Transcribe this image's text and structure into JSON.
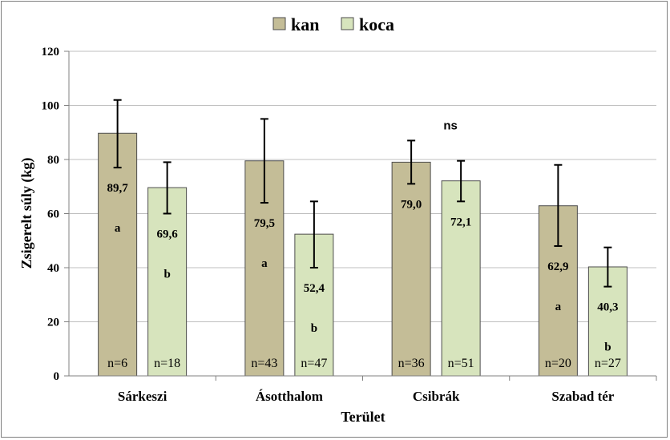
{
  "chart_data": {
    "type": "bar",
    "title": "",
    "xlabel": "Terület",
    "ylabel": "Zsigerelt súly (kg)",
    "ylim": [
      0,
      120
    ],
    "yticks": [
      0,
      20,
      40,
      60,
      80,
      100,
      120
    ],
    "categories": [
      "Sárkeszi",
      "Ásotthalom",
      "Csibrák",
      "Szabad tér"
    ],
    "legend_position": "top-center",
    "grid": true,
    "colors": {
      "kan": "#c4bd97",
      "koca": "#d7e4bd",
      "border": "#4d4d4d"
    },
    "series": [
      {
        "name": "kan",
        "values": [
          89.7,
          79.5,
          79.0,
          62.9
        ],
        "value_labels": [
          "89,7",
          "79,5",
          "79,0",
          "62,9"
        ],
        "error_low": [
          77,
          64,
          71,
          48
        ],
        "error_high": [
          102,
          95,
          87,
          78
        ],
        "letters": [
          "a",
          "a",
          "",
          "a"
        ],
        "n": [
          "n=6",
          "n=43",
          "n=36",
          "n=20"
        ]
      },
      {
        "name": "koca",
        "values": [
          69.6,
          52.4,
          72.1,
          40.3
        ],
        "value_labels": [
          "69,6",
          "52,4",
          "72,1",
          "40,3"
        ],
        "error_low": [
          60,
          40,
          64.5,
          33
        ],
        "error_high": [
          79,
          64.5,
          79.5,
          47.5
        ],
        "letters": [
          "b",
          "b",
          "",
          "b"
        ],
        "n": [
          "n=18",
          "n=47",
          "n=51",
          "n=27"
        ]
      }
    ],
    "annotations": [
      {
        "category": "Csibrák",
        "text": "ns"
      }
    ]
  }
}
